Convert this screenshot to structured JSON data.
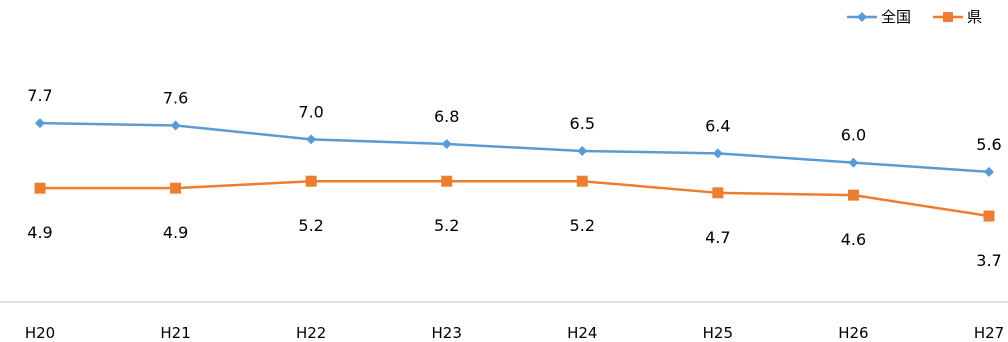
{
  "chart_data": {
    "type": "line",
    "title": "",
    "xlabel": "",
    "ylabel": "",
    "categories": [
      "H20",
      "H21",
      "H22",
      "H23",
      "H24",
      "H25",
      "H26",
      "H27"
    ],
    "series": [
      {
        "name": "全国",
        "color": "#5b9bd5",
        "marker": "diamond",
        "values": [
          7.7,
          7.6,
          7.0,
          6.8,
          6.5,
          6.4,
          6.0,
          5.6
        ],
        "labels": [
          "7.7",
          "7.6",
          "7.0",
          "6.8",
          "6.5",
          "6.4",
          "6.0",
          "5.6"
        ],
        "label_position": "above"
      },
      {
        "name": "県",
        "color": "#ed7d31",
        "marker": "square",
        "values": [
          4.9,
          4.9,
          5.2,
          5.2,
          5.2,
          4.7,
          4.6,
          3.7
        ],
        "labels": [
          "4.9",
          "4.9",
          "5.2",
          "5.2",
          "5.2",
          "4.7",
          "4.6",
          "3.7"
        ],
        "label_position": "below"
      }
    ],
    "ylim": [
      0,
      13
    ],
    "grid": false,
    "legend": "top-right",
    "axis_color": "#bfbfbf"
  }
}
